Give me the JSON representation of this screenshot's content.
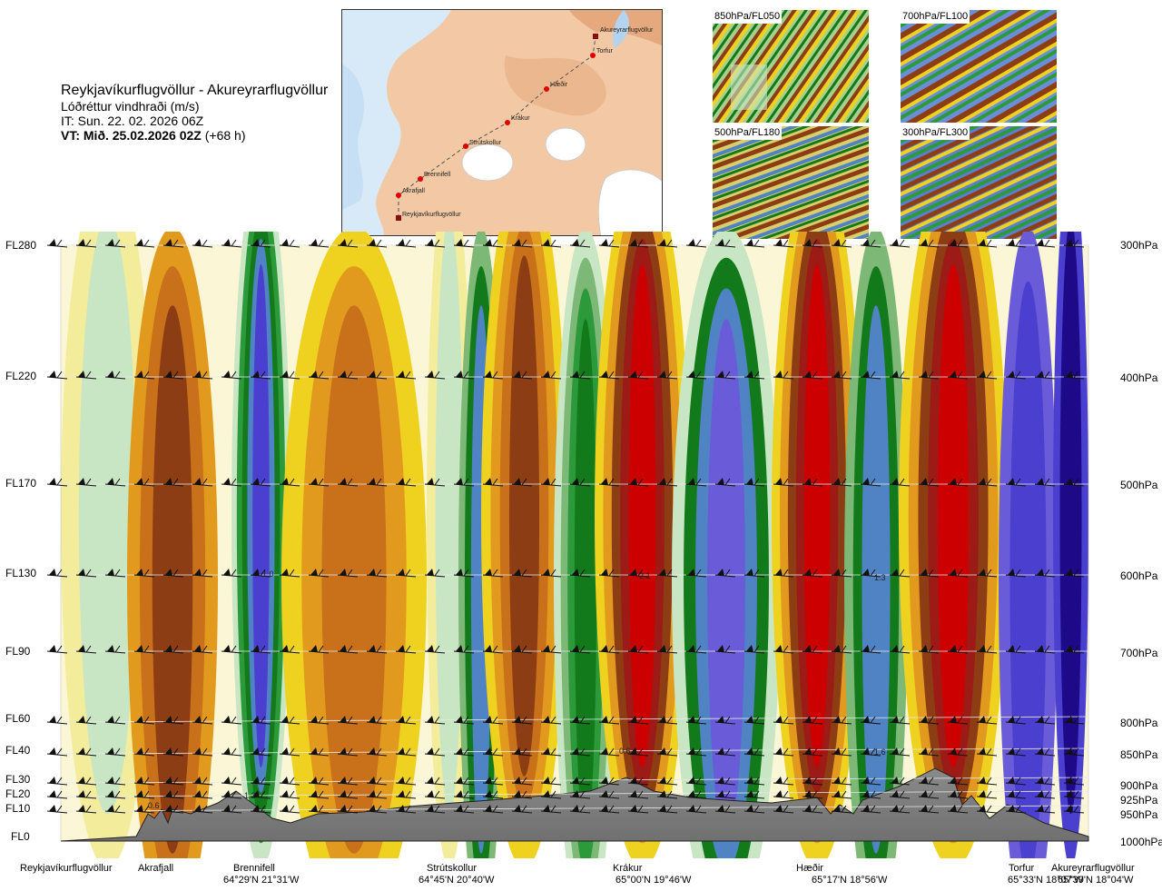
{
  "header": {
    "route": "Reykjavíkurflugvöllur - Akureyrarflugvöllur",
    "parameter": "Lóðréttur vindhraði (m/s)",
    "issue_time": "IT: Sun. 22. 02. 2026 06Z",
    "valid_prefix": "VT: Mið. 25.02.2026 02Z",
    "valid_suffix": " (+68 h)"
  },
  "overview_map": {
    "points": [
      "Reykjavíkurflugvöllur",
      "Akrafjall",
      "Brennifell",
      "Strútskollur",
      "Krákur",
      "Hæðir",
      "Torfur",
      "Akureyrarflugvöllur"
    ]
  },
  "thumbnails": [
    "850hPa/FL050",
    "700hPa/FL100",
    "500hPa/FL180",
    "300hPa/FL300"
  ],
  "chart_data": {
    "type": "heatmap",
    "title": "Lóðréttur vindhraði (m/s)",
    "flight_levels": [
      "FL280",
      "FL220",
      "FL170",
      "FL130",
      "FL90",
      "FL60",
      "FL40",
      "FL30",
      "FL20",
      "FL10",
      "FL0"
    ],
    "pressure_levels": [
      "300hPa",
      "400hPa",
      "500hPa",
      "600hPa",
      "700hPa",
      "800hPa",
      "850hPa",
      "900hPa",
      "925hPa",
      "950hPa",
      "1000hPa"
    ],
    "stations": [
      {
        "name": "Reykjavíkurflugvöllur",
        "coord": ""
      },
      {
        "name": "Akrafjall",
        "coord": ""
      },
      {
        "name": "Brennifell",
        "coord": "64°29'N 21°31'W"
      },
      {
        "name": "Strútskollur",
        "coord": "64°45'N 20°40'W"
      },
      {
        "name": "Krákur",
        "coord": "65°00'N 19°46'W"
      },
      {
        "name": "Hæðir",
        "coord": "65°17'N 18°56'W"
      },
      {
        "name": "Torfur",
        "coord": "65°33'N 18°07'W"
      },
      {
        "name": "Akureyrarflugvöllur",
        "coord": "65°39'N 18°04'W"
      }
    ],
    "value_labels": [
      "1.0",
      "2.1",
      "1.3",
      "0.6",
      "1.6",
      "1.2",
      "0.6"
    ],
    "colors": {
      "strong_down_dark": "#1e0a88",
      "down_3": "#4a3fcf",
      "down_2": "#6a5bd8",
      "down_1": "#4f83c4",
      "green_dark": "#137a1b",
      "green_mid": "#2c9a3a",
      "green_light": "#7db877",
      "green_pale": "#c8e6c3",
      "neutral": "#fbf6d6",
      "yellow_light": "#f3ec9a",
      "yellow": "#efd21f",
      "orange": "#e29a1e",
      "orange_dark": "#c8711a",
      "brown": "#8d3d14",
      "red_dark": "#9c1b16",
      "red": "#cc0000",
      "terrain": "#7f7f7f"
    }
  }
}
